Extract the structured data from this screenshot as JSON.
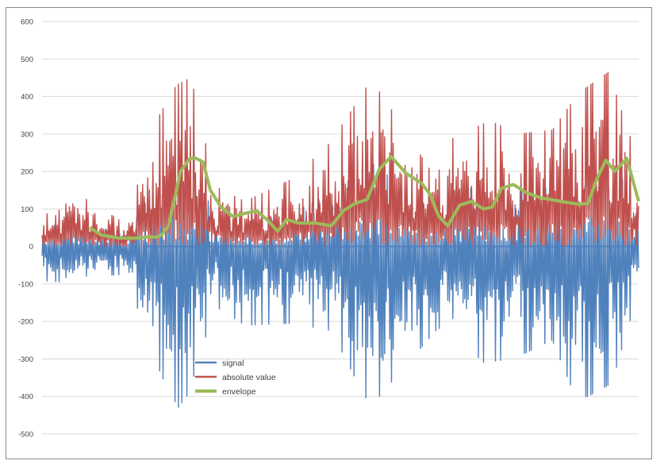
{
  "chart_data": {
    "type": "line",
    "title": "",
    "xlabel": "",
    "ylabel": "",
    "ylim": [
      -500,
      600
    ],
    "yticks": [
      600,
      500,
      400,
      300,
      200,
      100,
      0,
      -100,
      -200,
      -300,
      -400,
      -500
    ],
    "ytick_labels": [
      "600",
      "500",
      "400",
      "300",
      "200",
      "100",
      "0",
      "-100",
      "-200",
      "-300",
      "-400",
      "-500"
    ],
    "x_range": [
      0,
      1000
    ],
    "grid": true,
    "legend_position": "inside-bottom-left",
    "legend": [
      "signal",
      "absolute value",
      "envelope"
    ],
    "series": [
      {
        "name": "signal",
        "color": "#4f81bd",
        "description": "oscillating raw signal, roughly symmetric around 0",
        "peak_points": [
          {
            "x": 0,
            "y": -60
          },
          {
            "x": 20,
            "y": -135
          },
          {
            "x": 60,
            "y": -80
          },
          {
            "x": 140,
            "y": -75
          },
          {
            "x": 200,
            "y": -345
          },
          {
            "x": 228,
            "y": -430
          },
          {
            "x": 245,
            "y": -395
          },
          {
            "x": 290,
            "y": -160
          },
          {
            "x": 340,
            "y": -210
          },
          {
            "x": 420,
            "y": -205
          },
          {
            "x": 485,
            "y": -225
          },
          {
            "x": 540,
            "y": -400
          },
          {
            "x": 555,
            "y": -420
          },
          {
            "x": 600,
            "y": -335
          },
          {
            "x": 660,
            "y": -225
          },
          {
            "x": 700,
            "y": -180
          },
          {
            "x": 735,
            "y": -310
          },
          {
            "x": 790,
            "y": -300
          },
          {
            "x": 855,
            "y": -250
          },
          {
            "x": 895,
            "y": -405
          },
          {
            "x": 915,
            "y": -400
          },
          {
            "x": 955,
            "y": -365
          },
          {
            "x": 1000,
            "y": -120
          }
        ]
      },
      {
        "name": "absolute value",
        "color": "#c0504d",
        "description": "absolute value of the signal, always >= 0",
        "peak_points": [
          {
            "x": 0,
            "y": 70
          },
          {
            "x": 20,
            "y": 110
          },
          {
            "x": 45,
            "y": 155
          },
          {
            "x": 140,
            "y": 60
          },
          {
            "x": 195,
            "y": 345
          },
          {
            "x": 225,
            "y": 430
          },
          {
            "x": 250,
            "y": 450
          },
          {
            "x": 290,
            "y": 160
          },
          {
            "x": 340,
            "y": 120
          },
          {
            "x": 420,
            "y": 180
          },
          {
            "x": 485,
            "y": 280
          },
          {
            "x": 552,
            "y": 445
          },
          {
            "x": 600,
            "y": 330
          },
          {
            "x": 660,
            "y": 180
          },
          {
            "x": 685,
            "y": 285
          },
          {
            "x": 750,
            "y": 335
          },
          {
            "x": 800,
            "y": 300
          },
          {
            "x": 855,
            "y": 310
          },
          {
            "x": 900,
            "y": 410
          },
          {
            "x": 950,
            "y": 465
          },
          {
            "x": 1000,
            "y": 225
          }
        ]
      },
      {
        "name": "envelope",
        "color": "#9bbb59",
        "x": [
          80,
          100,
          130,
          160,
          175,
          192,
          200,
          212,
          222,
          232,
          248,
          258,
          270,
          282,
          300,
          320,
          340,
          360,
          378,
          395,
          410,
          430,
          460,
          485,
          505,
          525,
          545,
          565,
          585,
          610,
          635,
          650,
          665,
          680,
          700,
          720,
          740,
          755,
          770,
          790,
          810,
          835,
          870,
          890,
          900,
          915,
          930,
          945,
          960,
          980,
          1000
        ],
        "values": [
          50,
          30,
          22,
          22,
          25,
          25,
          30,
          55,
          125,
          200,
          235,
          235,
          225,
          150,
          105,
          80,
          88,
          95,
          70,
          40,
          72,
          62,
          62,
          55,
          95,
          115,
          125,
          205,
          240,
          195,
          170,
          140,
          80,
          55,
          110,
          120,
          100,
          105,
          155,
          165,
          145,
          130,
          120,
          115,
          112,
          115,
          180,
          230,
          200,
          235,
          120
        ]
      }
    ]
  }
}
